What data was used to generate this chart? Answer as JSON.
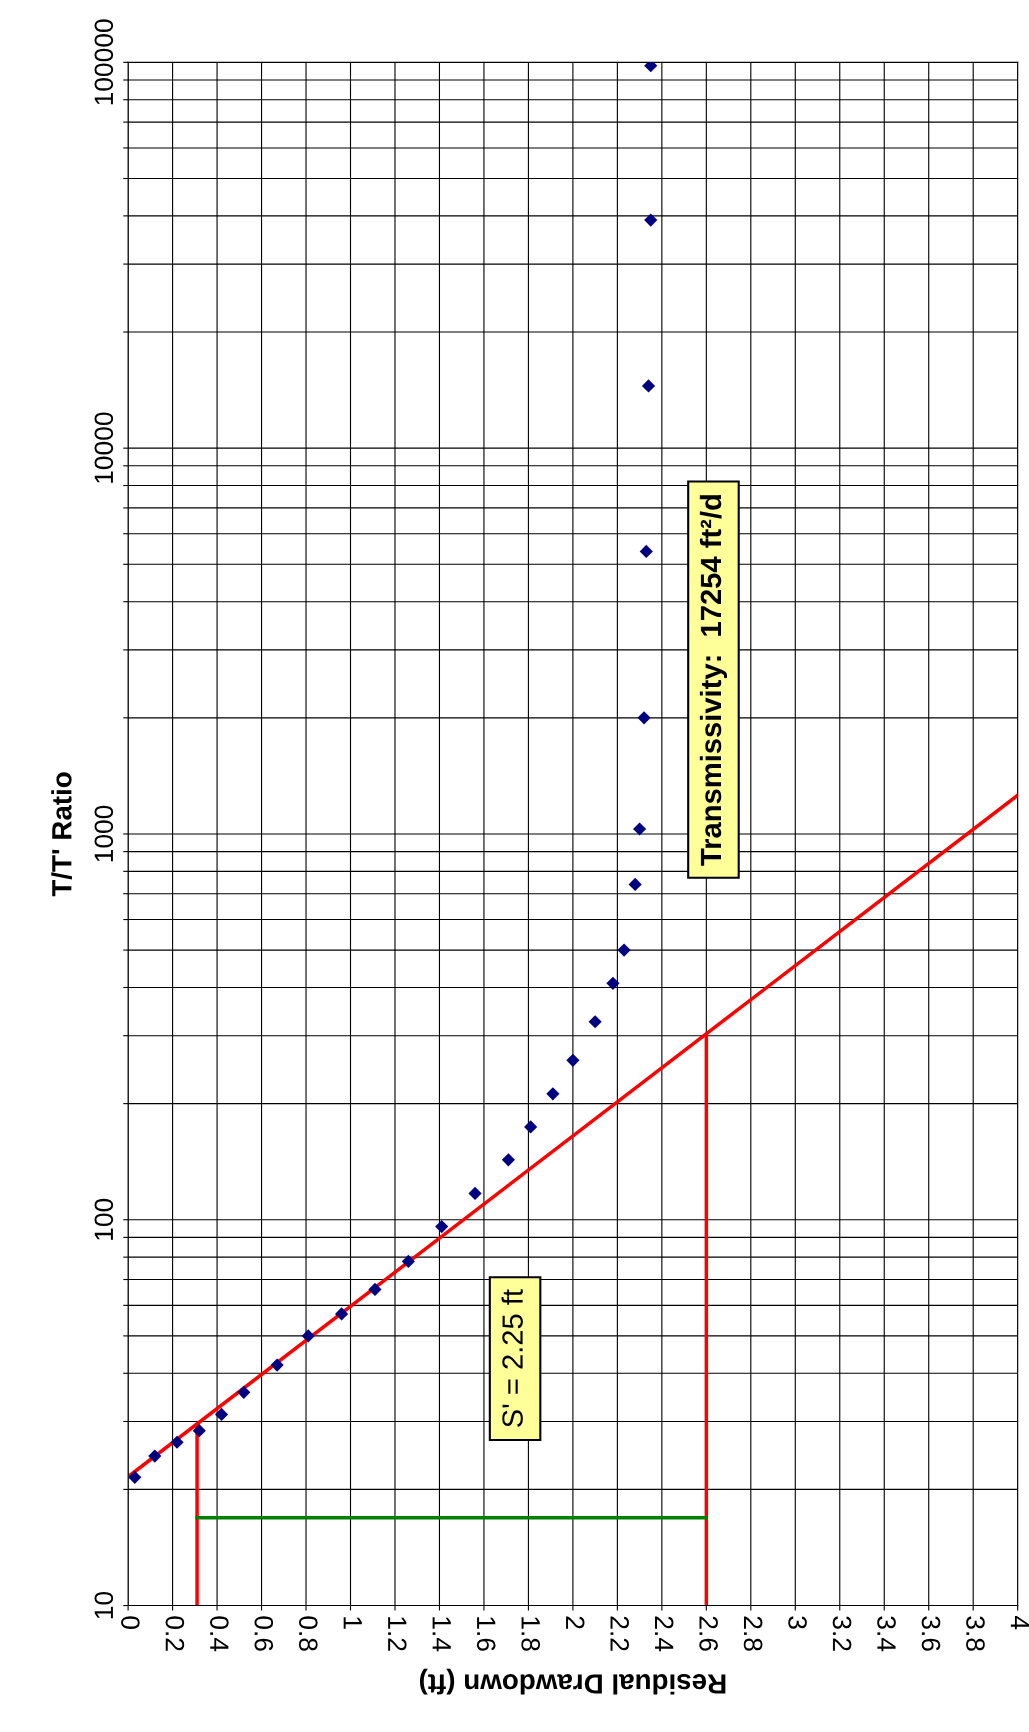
{
  "chart_data": {
    "type": "scatter",
    "xlabel": "Residual Drawdown (ft)",
    "ylabel": "T/T' Ratio",
    "log": "y",
    "grid": true,
    "legend": false,
    "xlim": [
      0,
      4
    ],
    "xticks": [
      0,
      0.2,
      0.4,
      0.6,
      0.8,
      1,
      1.2,
      1.4,
      1.6,
      1.8,
      2,
      2.2,
      2.4,
      2.6,
      2.8,
      3,
      3.2,
      3.4,
      3.6,
      3.8,
      4
    ],
    "ylim": [
      10,
      100000
    ],
    "yticks": [
      10,
      {
        "value": 20,
        "label": null
      },
      {
        "value": 30,
        "label": null
      },
      {
        "value": 40,
        "label": null
      },
      {
        "value": 50,
        "label": null
      },
      {
        "value": 60,
        "label": null
      },
      {
        "value": 70,
        "label": null
      },
      {
        "value": 80,
        "label": null
      },
      {
        "value": 90,
        "label": null
      },
      100,
      {
        "value": 200,
        "label": null
      },
      {
        "value": 300,
        "label": null
      },
      {
        "value": 400,
        "label": null
      },
      {
        "value": 500,
        "label": null
      },
      {
        "value": 600,
        "label": null
      },
      {
        "value": 700,
        "label": null
      },
      {
        "value": 800,
        "label": null
      },
      {
        "value": 900,
        "label": null
      },
      1000,
      {
        "value": 2000,
        "label": null
      },
      {
        "value": 3000,
        "label": null
      },
      {
        "value": 4000,
        "label": null
      },
      {
        "value": 5000,
        "label": null
      },
      {
        "value": 6000,
        "label": null
      },
      {
        "value": 7000,
        "label": null
      },
      {
        "value": 8000,
        "label": null
      },
      {
        "value": 9000,
        "label": null
      },
      10000,
      {
        "value": 20000,
        "label": null
      },
      {
        "value": 30000,
        "label": null
      },
      {
        "value": 40000,
        "label": null
      },
      {
        "value": 50000,
        "label": null
      },
      {
        "value": 60000,
        "label": null
      },
      {
        "value": 70000,
        "label": null
      },
      {
        "value": 80000,
        "label": null
      },
      {
        "value": 90000,
        "label": null
      },
      100000
    ],
    "series": [
      {
        "marker": "diamond",
        "color": "#000080",
        "x": [
          0.03,
          0.12,
          0.22,
          0.32,
          0.42,
          0.52,
          0.67,
          0.81,
          0.96,
          1.11,
          1.26,
          1.41,
          1.56,
          1.71,
          1.81,
          1.91,
          2.0,
          2.1,
          2.18,
          2.23,
          2.28,
          2.3,
          2.32,
          2.33,
          2.34,
          2.35,
          2.35
        ],
        "values": [
          21.5,
          24.4,
          26.5,
          28.4,
          31.3,
          35.7,
          42,
          50,
          57,
          66,
          78,
          96,
          117,
          143,
          174,
          212,
          259,
          326,
          410,
          500,
          740,
          1030,
          2000,
          5400,
          14500,
          39000,
          98000
        ]
      },
      {
        "type": "line",
        "color": "#ff0000",
        "x": [
          0.01,
          4
        ],
        "values": [
          21.8,
          1260
        ]
      },
      {
        "type": "line",
        "color": "#ff0000",
        "x": [
          0.31,
          0.31
        ],
        "values": [
          29.3,
          10
        ]
      },
      {
        "type": "line",
        "color": "#ff0000",
        "x": [
          2.6,
          2.6
        ],
        "values": [
          300,
          10
        ]
      },
      {
        "type": "line",
        "color": "#008000",
        "x": [
          0.31,
          2.6
        ],
        "values": [
          16.9,
          16.9
        ]
      }
    ],
    "annotations": [
      "S' = 2.25 ft",
      "Transmissivity:  17254 ft²/d"
    ]
  }
}
